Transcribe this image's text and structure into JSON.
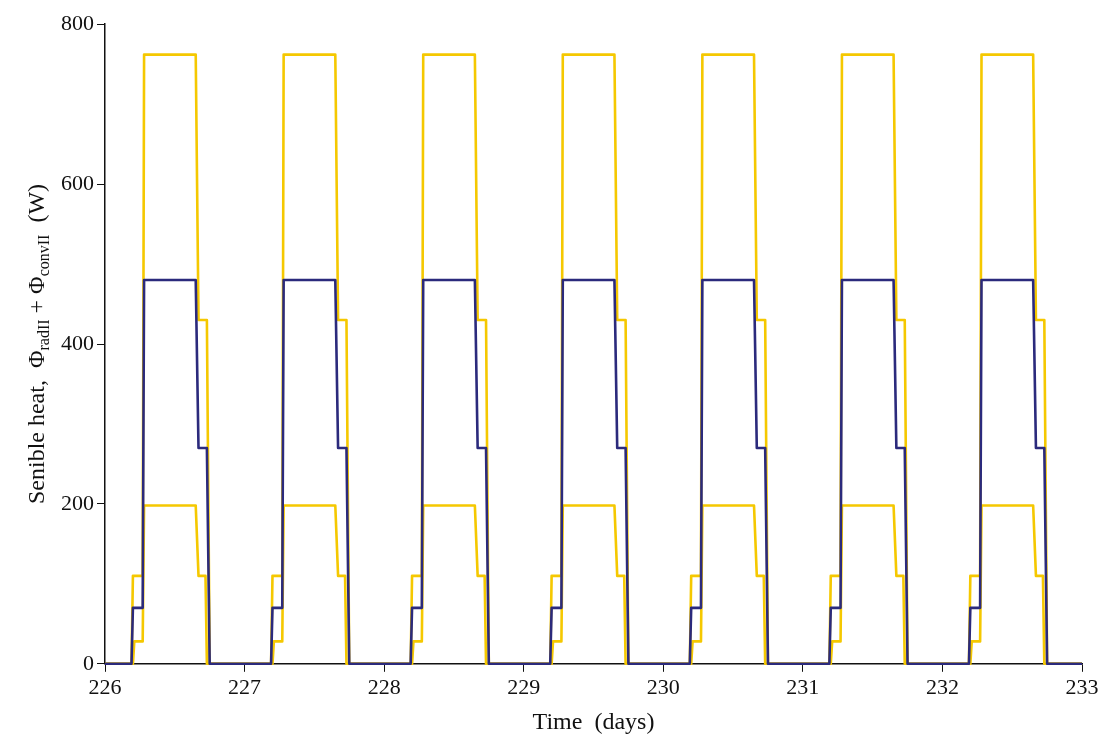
{
  "chart_data": {
    "type": "line",
    "xlabel": "Time  (days)",
    "ylabel": "Senible heat,  Φ$_{radII}$ + Φ$_{convII}$  (W)",
    "xlim": [
      226,
      233
    ],
    "xticks": [
      226,
      227,
      228,
      229,
      230,
      231,
      232,
      233
    ],
    "ylim": [
      0,
      800
    ],
    "yticks": [
      0,
      200,
      400,
      600,
      800
    ],
    "grid": false,
    "legend": false,
    "marker": "none",
    "line_style": "solid",
    "series": [
      {
        "color": "#f5c800",
        "x": [
          226,
          226.19,
          226.2,
          226.27,
          226.28,
          226.65,
          226.67,
          226.73,
          226.75,
          227.19,
          227.2,
          227.27,
          227.28,
          227.65,
          227.67,
          227.73,
          227.75,
          228.19,
          228.2,
          228.27,
          228.28,
          228.65,
          228.67,
          228.73,
          228.75,
          229.19,
          229.2,
          229.27,
          229.28,
          229.65,
          229.67,
          229.73,
          229.75,
          230.19,
          230.2,
          230.27,
          230.28,
          230.65,
          230.67,
          230.73,
          230.75,
          231.19,
          231.2,
          231.27,
          231.28,
          231.65,
          231.67,
          231.73,
          231.75,
          232.19,
          232.2,
          232.27,
          232.28,
          232.65,
          232.67,
          232.73,
          232.75,
          233
        ],
        "values": [
          0,
          0,
          110,
          110,
          762,
          762,
          430,
          430,
          0,
          0,
          110,
          110,
          762,
          762,
          430,
          430,
          0,
          0,
          110,
          110,
          762,
          762,
          430,
          430,
          0,
          0,
          110,
          110,
          762,
          762,
          430,
          430,
          0,
          0,
          110,
          110,
          762,
          762,
          430,
          430,
          0,
          0,
          110,
          110,
          762,
          762,
          430,
          430,
          0,
          0,
          110,
          110,
          762,
          762,
          430,
          430,
          0,
          0
        ]
      },
      {
        "color": "#f5c800",
        "x": [
          226,
          226.2,
          226.21,
          226.27,
          226.28,
          226.65,
          226.67,
          226.72,
          226.73,
          227.2,
          227.21,
          227.27,
          227.28,
          227.65,
          227.67,
          227.72,
          227.73,
          228.2,
          228.21,
          228.27,
          228.28,
          228.65,
          228.67,
          228.72,
          228.73,
          229.2,
          229.21,
          229.27,
          229.28,
          229.65,
          229.67,
          229.72,
          229.73,
          230.2,
          230.21,
          230.27,
          230.28,
          230.65,
          230.67,
          230.72,
          230.73,
          231.2,
          231.21,
          231.27,
          231.28,
          231.65,
          231.67,
          231.72,
          231.73,
          232.2,
          232.21,
          232.27,
          232.28,
          232.65,
          232.67,
          232.72,
          232.73,
          233
        ],
        "values": [
          0,
          0,
          28,
          28,
          198,
          198,
          110,
          110,
          0,
          0,
          28,
          28,
          198,
          198,
          110,
          110,
          0,
          0,
          28,
          28,
          198,
          198,
          110,
          110,
          0,
          0,
          28,
          28,
          198,
          198,
          110,
          110,
          0,
          0,
          28,
          28,
          198,
          198,
          110,
          110,
          0,
          0,
          28,
          28,
          198,
          198,
          110,
          110,
          0,
          0,
          28,
          28,
          198,
          198,
          110,
          110,
          0,
          0
        ]
      },
      {
        "color": "#2b2a7c",
        "x": [
          226,
          226.19,
          226.2,
          226.27,
          226.28,
          226.65,
          226.67,
          226.73,
          226.75,
          227.19,
          227.2,
          227.27,
          227.28,
          227.65,
          227.67,
          227.73,
          227.75,
          228.19,
          228.2,
          228.27,
          228.28,
          228.65,
          228.67,
          228.73,
          228.75,
          229.19,
          229.2,
          229.27,
          229.28,
          229.65,
          229.67,
          229.73,
          229.75,
          230.19,
          230.2,
          230.27,
          230.28,
          230.65,
          230.67,
          230.73,
          230.75,
          231.19,
          231.2,
          231.27,
          231.28,
          231.65,
          231.67,
          231.73,
          231.75,
          232.19,
          232.2,
          232.27,
          232.28,
          232.65,
          232.67,
          232.73,
          232.75,
          233
        ],
        "values": [
          0,
          0,
          70,
          70,
          480,
          480,
          270,
          270,
          0,
          0,
          70,
          70,
          480,
          480,
          270,
          270,
          0,
          0,
          70,
          70,
          480,
          480,
          270,
          270,
          0,
          0,
          70,
          70,
          480,
          480,
          270,
          270,
          0,
          0,
          70,
          70,
          480,
          480,
          270,
          270,
          0,
          0,
          70,
          70,
          480,
          480,
          270,
          270,
          0,
          0,
          70,
          70,
          480,
          480,
          270,
          270,
          0,
          0
        ]
      }
    ]
  }
}
